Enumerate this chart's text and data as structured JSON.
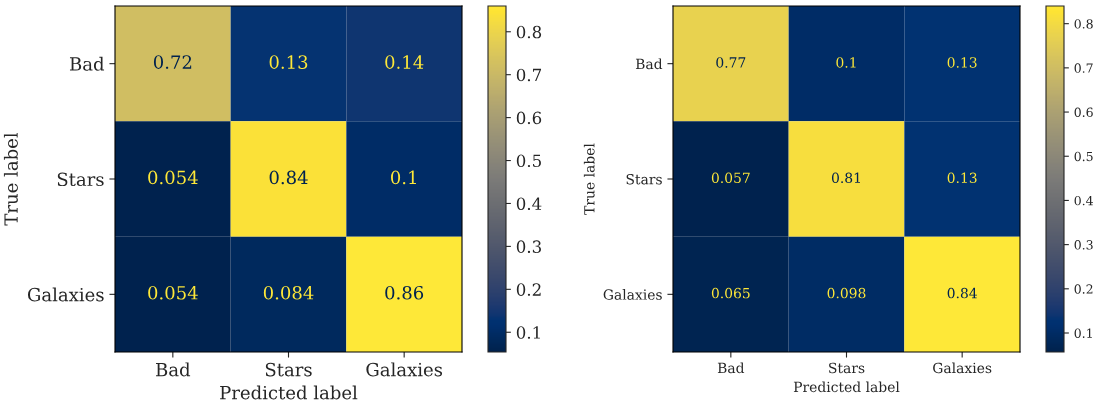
{
  "chart_data": [
    {
      "type": "heatmap",
      "xlabel": "Predicted label",
      "ylabel": "True label",
      "categories": [
        "Bad",
        "Stars",
        "Galaxies"
      ],
      "y_categories": [
        "Bad",
        "Stars",
        "Galaxies"
      ],
      "cells": [
        [
          0.72,
          0.13,
          0.14
        ],
        [
          0.054,
          0.84,
          0.1
        ],
        [
          0.054,
          0.084,
          0.86
        ]
      ],
      "data_labels": true,
      "clim": [
        0.054,
        0.86
      ],
      "cticks": [
        0.1,
        0.2,
        0.3,
        0.4,
        0.5,
        0.6,
        0.7,
        0.8
      ]
    },
    {
      "type": "heatmap",
      "xlabel": "Predicted label",
      "ylabel": "True label",
      "categories": [
        "Bad",
        "Stars",
        "Galaxies"
      ],
      "y_categories": [
        "Bad",
        "Stars",
        "Galaxies"
      ],
      "cells": [
        [
          0.77,
          0.1,
          0.13
        ],
        [
          0.057,
          0.81,
          0.13
        ],
        [
          0.065,
          0.098,
          0.84
        ]
      ],
      "data_labels": true,
      "clim": [
        0.057,
        0.84
      ],
      "cticks": [
        0.1,
        0.2,
        0.3,
        0.4,
        0.5,
        0.6,
        0.7,
        0.8
      ]
    }
  ]
}
